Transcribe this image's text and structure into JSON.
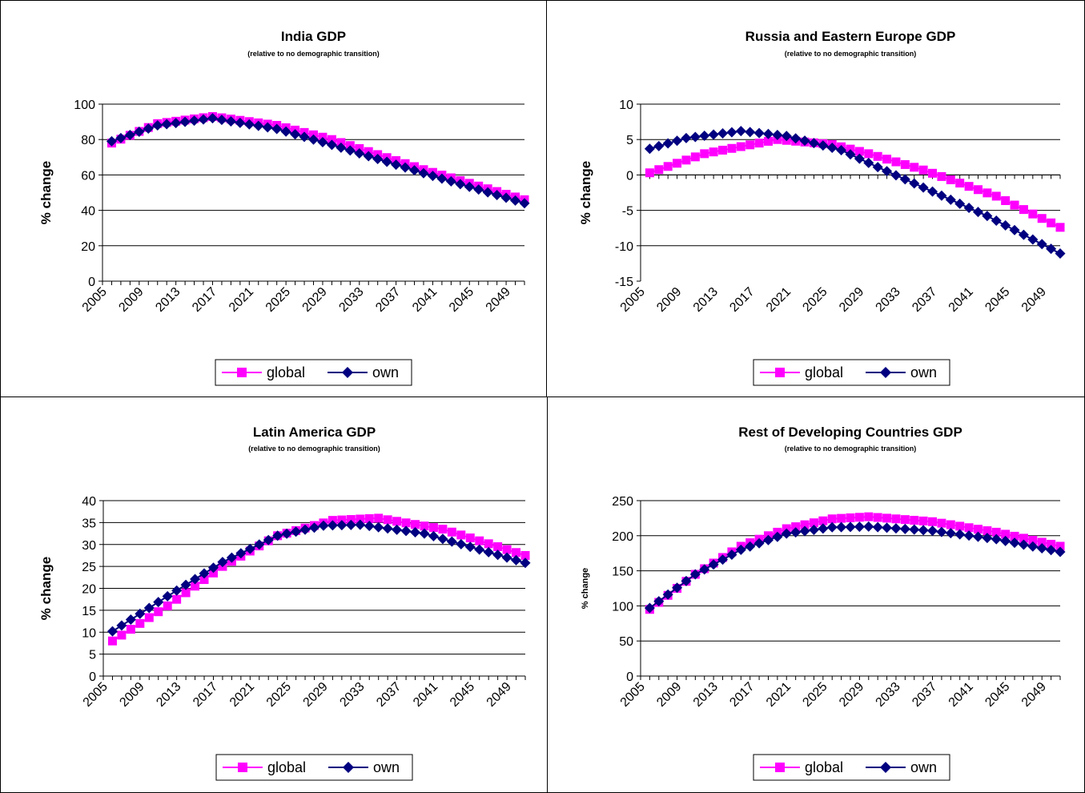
{
  "colors": {
    "global": "#FF00FF",
    "own": "#000080"
  },
  "chart_data": [
    {
      "type": "line",
      "title": "India GDP",
      "subtitle": "(relative to no demographic transition)",
      "ylabel": "% change",
      "xlabel": "",
      "ylim": [
        0,
        100
      ],
      "yticks": [
        0,
        20,
        40,
        60,
        80,
        100
      ],
      "x_tick_labels": [
        "2005",
        "2009",
        "2013",
        "2017",
        "2021",
        "2025",
        "2029",
        "2033",
        "2037",
        "2041",
        "2045",
        "2049"
      ],
      "x_range": [
        2005,
        2051
      ],
      "grid": true,
      "legend": "bottom",
      "series": [
        {
          "name": "global",
          "marker": "square",
          "x": [
            2006,
            2011,
            2017,
            2024,
            2030,
            2040,
            2051
          ],
          "y": [
            78,
            89,
            93,
            88,
            80,
            63,
            46
          ]
        },
        {
          "name": "own",
          "marker": "diamond",
          "x": [
            2006,
            2011,
            2017,
            2024,
            2030,
            2040,
            2051
          ],
          "y": [
            79,
            88,
            92,
            86,
            77,
            61,
            44
          ]
        }
      ]
    },
    {
      "type": "line",
      "title": "Russia and Eastern Europe GDP",
      "subtitle": "(relative to no demographic transition)",
      "ylabel": "% change",
      "xlabel": "",
      "ylim": [
        -15,
        10
      ],
      "yticks": [
        -15,
        -10,
        -5,
        0,
        5,
        10
      ],
      "x_tick_labels": [
        "2005",
        "2009",
        "2013",
        "2017",
        "2021",
        "2025",
        "2029",
        "2033",
        "2037",
        "2041",
        "2045",
        "2049"
      ],
      "x_range": [
        2005,
        2051
      ],
      "grid": true,
      "legend": "bottom",
      "series": [
        {
          "name": "global",
          "marker": "square",
          "x": [
            2006,
            2012,
            2020,
            2026,
            2030,
            2036,
            2044,
            2051
          ],
          "y": [
            0.3,
            3.0,
            5.0,
            4.3,
            3.0,
            0.7,
            -3.0,
            -7.4
          ]
        },
        {
          "name": "own",
          "marker": "diamond",
          "x": [
            2006,
            2010,
            2016,
            2021,
            2027,
            2031,
            2035,
            2043,
            2051
          ],
          "y": [
            3.7,
            5.2,
            6.2,
            5.5,
            3.5,
            1.1,
            -1.2,
            -5.8,
            -11.1
          ]
        }
      ]
    },
    {
      "type": "line",
      "title": "Latin America GDP",
      "subtitle": "(relative to no demographic transition)",
      "ylabel": "% change",
      "xlabel": "",
      "ylim": [
        0,
        40
      ],
      "yticks": [
        0,
        5,
        10,
        15,
        20,
        25,
        30,
        35,
        40
      ],
      "x_tick_labels": [
        "2005",
        "2009",
        "2013",
        "2017",
        "2021",
        "2025",
        "2029",
        "2033",
        "2037",
        "2041",
        "2045",
        "2049"
      ],
      "x_range": [
        2005,
        2051
      ],
      "grid": true,
      "legend": "bottom",
      "series": [
        {
          "name": "global",
          "marker": "square",
          "x": [
            2006,
            2012,
            2018,
            2024,
            2030,
            2035,
            2042,
            2051
          ],
          "y": [
            8,
            16,
            25,
            32,
            35.5,
            36,
            33.5,
            27.5
          ]
        },
        {
          "name": "own",
          "marker": "diamond",
          "x": [
            2006,
            2012,
            2018,
            2024,
            2029,
            2033,
            2040,
            2051
          ],
          "y": [
            10.2,
            18.2,
            26,
            32,
            34.3,
            34.5,
            32.5,
            25.8
          ]
        }
      ]
    },
    {
      "type": "line",
      "title": "Rest of Developing Countries GDP",
      "subtitle": "(relative to no demographic transition)",
      "ylabel": "% change",
      "xlabel": "",
      "ylim": [
        0,
        250
      ],
      "yticks": [
        0,
        50,
        100,
        150,
        200,
        250
      ],
      "x_tick_labels": [
        "2005",
        "2009",
        "2013",
        "2017",
        "2021",
        "2025",
        "2029",
        "2033",
        "2037",
        "2041",
        "2045",
        "2049"
      ],
      "x_range": [
        2005,
        2051
      ],
      "grid": true,
      "legend": "bottom",
      "series": [
        {
          "name": "global",
          "marker": "square",
          "x": [
            2006,
            2011,
            2016,
            2021,
            2026,
            2030,
            2037,
            2044,
            2051
          ],
          "y": [
            95,
            145,
            185,
            210,
            224,
            227,
            220,
            205,
            185
          ]
        },
        {
          "name": "own",
          "marker": "diamond",
          "x": [
            2006,
            2011,
            2016,
            2021,
            2026,
            2030,
            2037,
            2044,
            2051
          ],
          "y": [
            97,
            145,
            180,
            203,
            212,
            213,
            207,
            195,
            177
          ]
        }
      ]
    }
  ]
}
